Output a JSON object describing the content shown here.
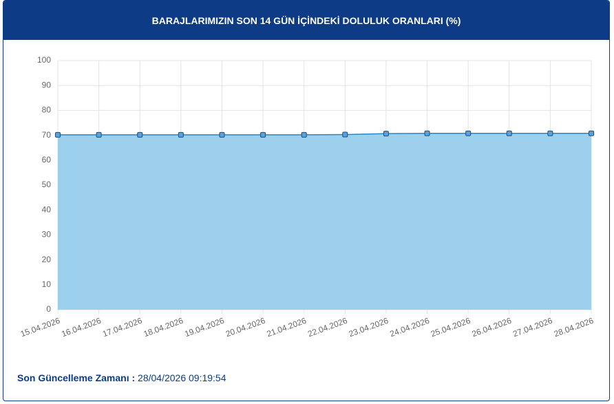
{
  "chart_data": {
    "type": "area",
    "title": "BARAJLARIMIZIN SON 14 GÜN İÇİNDEKİ DOLULUK ORANLARI (%)",
    "categories": [
      "15.04.2026",
      "16.04.2026",
      "17.04.2026",
      "18.04.2026",
      "19.04.2026",
      "20.04.2026",
      "21.04.2026",
      "22.04.2026",
      "23.04.2026",
      "24.04.2026",
      "25.04.2026",
      "26.04.2026",
      "27.04.2026",
      "28.04.2026"
    ],
    "values": [
      70.2,
      70.2,
      70.2,
      70.2,
      70.2,
      70.2,
      70.2,
      70.3,
      70.7,
      70.8,
      70.8,
      70.8,
      70.8,
      70.8
    ],
    "color": "#2b84c4",
    "fill_color": "#9dd0ec",
    "marker_color": "#5d9fd6",
    "ylim": [
      0,
      100
    ],
    "yticks": [
      0,
      10,
      20,
      30,
      40,
      50,
      60,
      70,
      80,
      90,
      100
    ],
    "grid": true
  },
  "footer": {
    "label": "Son Güncelleme Zamanı :",
    "value": "28/04/2026 09:19:54"
  }
}
